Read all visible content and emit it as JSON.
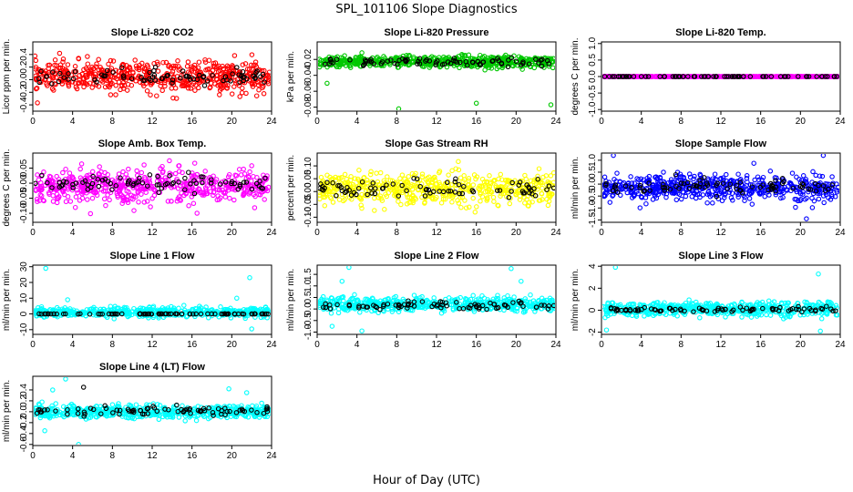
{
  "figure": {
    "title": "SPL_101106  Slope Diagnostics",
    "xlabel": "Hour of Day (UTC)"
  },
  "chart_data": [
    {
      "type": "scatter",
      "title": "Slope Li-820 CO2",
      "ylabel": "Licor ppm per min.",
      "xlim": [
        0,
        24
      ],
      "ylim": [
        -0.5,
        0.6
      ],
      "xticks": [
        0,
        4,
        8,
        12,
        16,
        20,
        24
      ],
      "xtick_labels": [
        "0",
        "4",
        "8",
        "12",
        "16",
        "20",
        "24"
      ],
      "yticks": [
        -0.4,
        -0.2,
        0.0,
        0.2,
        0.4
      ],
      "ytick_labels": [
        "-0.4",
        "-0.2",
        "0.0",
        "0.2",
        "0.4"
      ],
      "series": [
        {
          "color": "#ff0000",
          "n": 560,
          "center": 0.05,
          "spread": 0.2,
          "outliers": []
        },
        {
          "color": "#000000",
          "n": 80,
          "center": 0.05,
          "spread": 0.1,
          "outliers": []
        }
      ]
    },
    {
      "type": "scatter",
      "title": "Slope Li-820 Pressure",
      "ylabel": "kPa per min.",
      "xlim": [
        0,
        24
      ],
      "ylim": [
        -0.085,
        0.002
      ],
      "xticks": [
        0,
        4,
        8,
        12,
        16,
        20,
        24
      ],
      "xtick_labels": [
        "0",
        "4",
        "8",
        "12",
        "16",
        "20",
        "24"
      ],
      "yticks": [
        -0.08,
        -0.06,
        -0.04,
        -0.02
      ],
      "ytick_labels": [
        "-0.08",
        "-0.06",
        "-0.04",
        "-0.02"
      ],
      "series": [
        {
          "color": "#00c800",
          "n": 560,
          "center": -0.023,
          "spread": 0.006,
          "outliers": [
            [
              8.2,
              -0.082
            ],
            [
              16,
              -0.075
            ],
            [
              23.5,
              -0.077
            ],
            [
              1,
              -0.05
            ]
          ]
        },
        {
          "color": "#000000",
          "n": 80,
          "center": -0.023,
          "spread": 0.004,
          "outliers": []
        }
      ]
    },
    {
      "type": "scatter",
      "title": "Slope Li-820 Temp.",
      "ylabel": "degrees C per min.",
      "xlim": [
        0,
        24
      ],
      "ylim": [
        -1.05,
        1.05
      ],
      "xticks": [
        0,
        4,
        8,
        12,
        16,
        20,
        24
      ],
      "xtick_labels": [
        "0",
        "4",
        "8",
        "12",
        "16",
        "20",
        "24"
      ],
      "yticks": [
        -1.0,
        -0.5,
        0.0,
        0.5,
        1.0
      ],
      "ytick_labels": [
        "-1.0",
        "-0.5",
        "0.0",
        "0.5",
        "1.0"
      ],
      "series": [
        {
          "color": "#ff00ff",
          "n": 560,
          "center": 0.0,
          "spread": 0.0,
          "outliers": []
        },
        {
          "color": "#000000",
          "n": 80,
          "center": 0.0,
          "spread": 0.0,
          "outliers": []
        }
      ]
    },
    {
      "type": "scatter",
      "title": "Slope Amb. Box Temp.",
      "ylabel": "degrees C per min.",
      "xlim": [
        0,
        24
      ],
      "ylim": [
        -0.13,
        0.1
      ],
      "xticks": [
        0,
        4,
        8,
        12,
        16,
        20,
        24
      ],
      "xtick_labels": [
        "0",
        "4",
        "8",
        "12",
        "16",
        "20",
        "24"
      ],
      "yticks": [
        -0.1,
        -0.05,
        0.0,
        0.05
      ],
      "ytick_labels": [
        "-0.10",
        "-0.05",
        "0.00",
        "0.05"
      ],
      "series": [
        {
          "color": "#ff00ff",
          "n": 560,
          "center": -0.01,
          "spread": 0.045,
          "outliers": []
        },
        {
          "color": "#000000",
          "n": 80,
          "center": 0.0,
          "spread": 0.025,
          "outliers": []
        }
      ]
    },
    {
      "type": "scatter",
      "title": "Slope Gas Stream RH",
      "ylabel": "percent per min.",
      "xlim": [
        0,
        24
      ],
      "ylim": [
        -0.12,
        0.15
      ],
      "xticks": [
        0,
        4,
        8,
        12,
        16,
        20,
        24
      ],
      "xtick_labels": [
        "0",
        "4",
        "8",
        "12",
        "16",
        "20",
        "24"
      ],
      "yticks": [
        -0.1,
        -0.05,
        0.0,
        0.05,
        0.1
      ],
      "ytick_labels": [
        "-0.10",
        "-0.05",
        "0.00",
        "0.05",
        "0.10"
      ],
      "series": [
        {
          "color": "#ffff00",
          "n": 560,
          "center": 0.01,
          "spread": 0.05,
          "outliers": []
        },
        {
          "color": "#000000",
          "n": 80,
          "center": 0.01,
          "spread": 0.03,
          "outliers": []
        }
      ]
    },
    {
      "type": "scatter",
      "title": "Slope Sample Flow",
      "ylabel": "ml/min per min.",
      "xlim": [
        0,
        24
      ],
      "ylim": [
        -1.6,
        1.3
      ],
      "xticks": [
        0,
        4,
        8,
        12,
        16,
        20,
        24
      ],
      "xtick_labels": [
        "0",
        "4",
        "8",
        "12",
        "16",
        "20",
        "24"
      ],
      "yticks": [
        -1.5,
        -1.0,
        -0.5,
        0.0,
        0.5,
        1.0
      ],
      "ytick_labels": [
        "-1.5",
        "-1.0",
        "-0.5",
        "0.0",
        "0.5",
        "1.0"
      ],
      "series": [
        {
          "color": "#0000ff",
          "n": 560,
          "center": -0.15,
          "spread": 0.45,
          "outliers": [
            [
              1.2,
              1.2
            ],
            [
              22.3,
              1.2
            ],
            [
              20.6,
              -1.45
            ]
          ]
        },
        {
          "color": "#000000",
          "n": 80,
          "center": -0.1,
          "spread": 0.25,
          "outliers": []
        }
      ]
    },
    {
      "type": "scatter",
      "title": "Slope Line 1 Flow",
      "ylabel": "ml/min per min.",
      "xlim": [
        0,
        24
      ],
      "ylim": [
        -13,
        31
      ],
      "xticks": [
        0,
        4,
        8,
        12,
        16,
        20,
        24
      ],
      "xtick_labels": [
        "0",
        "4",
        "8",
        "12",
        "16",
        "20",
        "24"
      ],
      "yticks": [
        -10,
        0,
        10,
        20,
        30
      ],
      "ytick_labels": [
        "-10",
        "0",
        "10",
        "20",
        "30"
      ],
      "series": [
        {
          "color": "#00ffff",
          "n": 560,
          "center": 1.0,
          "spread": 2.5,
          "outliers": [
            [
              1.3,
              29
            ],
            [
              21.8,
              23
            ],
            [
              22,
              -9.5
            ],
            [
              3.5,
              9
            ],
            [
              20.5,
              10
            ]
          ]
        },
        {
          "color": "#000000",
          "n": 80,
          "center": 0.0,
          "spread": 0.1,
          "outliers": []
        }
      ]
    },
    {
      "type": "scatter",
      "title": "Slope Line 2 Flow",
      "ylabel": "ml/min per min.",
      "xlim": [
        0,
        24
      ],
      "ylim": [
        -1.1,
        1.9
      ],
      "xticks": [
        0,
        4,
        8,
        12,
        16,
        20,
        24
      ],
      "xtick_labels": [
        "0",
        "4",
        "8",
        "12",
        "16",
        "20",
        "24"
      ],
      "yticks": [
        -1.0,
        -0.5,
        0.0,
        0.5,
        1.0,
        1.5
      ],
      "ytick_labels": [
        "-1.0",
        "-0.5",
        "0.0",
        "0.5",
        "1.0",
        "1.5"
      ],
      "series": [
        {
          "color": "#00ffff",
          "n": 560,
          "center": 0.2,
          "spread": 0.25,
          "outliers": [
            [
              3.2,
              1.8
            ],
            [
              19.5,
              1.75
            ],
            [
              4.5,
              -0.95
            ],
            [
              1.5,
              -0.75
            ],
            [
              2.5,
              1.2
            ],
            [
              20.5,
              1.2
            ]
          ]
        },
        {
          "color": "#000000",
          "n": 80,
          "center": 0.15,
          "spread": 0.15,
          "outliers": []
        }
      ]
    },
    {
      "type": "scatter",
      "title": "Slope Line 3 Flow",
      "ylabel": "ml/min per min.",
      "xlim": [
        0,
        24
      ],
      "ylim": [
        -2.2,
        4.1
      ],
      "xticks": [
        0,
        4,
        8,
        12,
        16,
        20,
        24
      ],
      "xtick_labels": [
        "0",
        "4",
        "8",
        "12",
        "16",
        "20",
        "24"
      ],
      "yticks": [
        -2,
        0,
        2,
        4
      ],
      "ytick_labels": [
        "-2",
        "0",
        "2",
        "4"
      ],
      "series": [
        {
          "color": "#00ffff",
          "n": 560,
          "center": 0.1,
          "spread": 0.5,
          "outliers": [
            [
              1.4,
              3.9
            ],
            [
              21.8,
              3.3
            ],
            [
              0.5,
              -1.8
            ],
            [
              22,
              -1.9
            ]
          ]
        },
        {
          "color": "#000000",
          "n": 80,
          "center": 0.05,
          "spread": 0.2,
          "outliers": []
        }
      ]
    },
    {
      "type": "scatter",
      "title": "Slope Line 4 (LT) Flow",
      "ylabel": "ml/min per min.",
      "xlim": [
        0,
        24
      ],
      "ylim": [
        -0.62,
        0.65
      ],
      "xticks": [
        0,
        4,
        8,
        12,
        16,
        20,
        24
      ],
      "xtick_labels": [
        "0",
        "4",
        "8",
        "12",
        "16",
        "20",
        "24"
      ],
      "yticks": [
        -0.6,
        -0.4,
        -0.2,
        0.0,
        0.2,
        0.4
      ],
      "ytick_labels": [
        "-0.6",
        "-0.4",
        "-0.2",
        "0.0",
        "0.2",
        "0.4"
      ],
      "series": [
        {
          "color": "#00ffff",
          "n": 560,
          "center": 0.0,
          "spread": 0.1,
          "outliers": [
            [
              3.3,
              0.6
            ],
            [
              4.6,
              -0.6
            ],
            [
              19.7,
              0.42
            ],
            [
              2,
              0.4
            ],
            [
              21.5,
              0.35
            ],
            [
              1.2,
              -0.35
            ]
          ]
        },
        {
          "color": "#000000",
          "n": 80,
          "center": 0.02,
          "spread": 0.06,
          "outliers": [
            [
              5.1,
              0.45
            ]
          ]
        }
      ]
    }
  ]
}
